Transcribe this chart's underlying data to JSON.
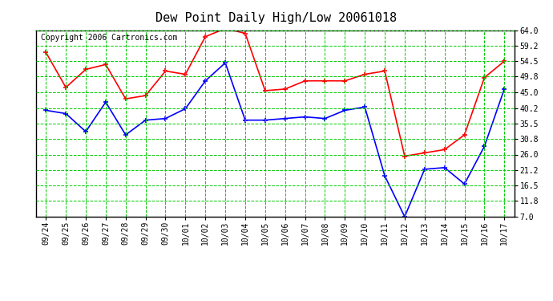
{
  "title": "Dew Point Daily High/Low 20061018",
  "copyright": "Copyright 2006 Cartronics.com",
  "x_labels": [
    "09/24",
    "09/25",
    "09/26",
    "09/27",
    "09/28",
    "09/29",
    "09/30",
    "10/01",
    "10/02",
    "10/03",
    "10/04",
    "10/05",
    "10/06",
    "10/07",
    "10/08",
    "10/09",
    "10/10",
    "10/11",
    "10/12",
    "10/13",
    "10/14",
    "10/15",
    "10/16",
    "10/17"
  ],
  "high_values": [
    57.2,
    46.5,
    52.0,
    53.5,
    43.0,
    44.0,
    51.5,
    50.5,
    62.0,
    64.5,
    63.0,
    45.5,
    46.0,
    48.5,
    48.5,
    48.5,
    50.5,
    51.5,
    25.5,
    26.5,
    27.5,
    32.0,
    49.5,
    54.5
  ],
  "low_values": [
    39.5,
    38.5,
    33.0,
    42.0,
    32.0,
    36.5,
    37.0,
    40.0,
    48.5,
    54.0,
    36.5,
    36.5,
    37.0,
    37.5,
    37.0,
    39.5,
    40.5,
    19.5,
    7.0,
    21.5,
    22.0,
    17.0,
    28.5,
    46.0
  ],
  "y_ticks": [
    7.0,
    11.8,
    16.5,
    21.2,
    26.0,
    30.8,
    35.5,
    40.2,
    45.0,
    49.8,
    54.5,
    59.2,
    64.0
  ],
  "y_min": 7.0,
  "y_max": 64.0,
  "high_color": "#ff0000",
  "low_color": "#0000ff",
  "bg_color": "#ffffff",
  "grid_color": "#00cc00",
  "title_fontsize": 11,
  "copyright_fontsize": 7,
  "tick_fontsize": 7,
  "y_tick_fontsize": 7
}
